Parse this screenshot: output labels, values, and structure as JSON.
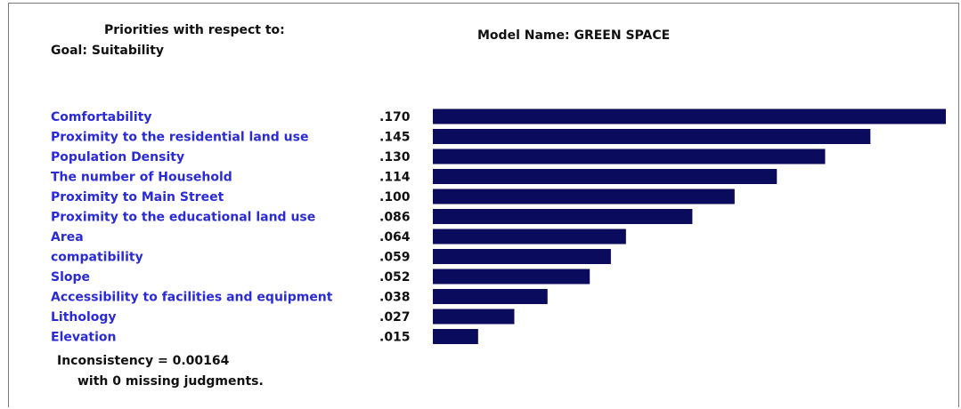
{
  "header": {
    "priorities_line": "Priorities with respect to:",
    "goal_line": "Goal: Suitability",
    "model_line": "Model Name: GREEN SPACE"
  },
  "chart_data": {
    "type": "bar",
    "orientation": "horizontal",
    "categories": [
      "Comfortability",
      "Proximity to the residential land use",
      "Population Density",
      "The number of Household",
      "Proximity to Main Street",
      "Proximity to the educational land use",
      "Area",
      "compatibility",
      "Slope",
      "Accessibility to facilities and equipment",
      "Lithology",
      "Elevation"
    ],
    "value_labels": [
      ".170",
      ".145",
      ".130",
      ".114",
      ".100",
      ".086",
      ".064",
      ".059",
      ".052",
      ".038",
      ".027",
      ".015"
    ],
    "values": [
      0.17,
      0.145,
      0.13,
      0.114,
      0.1,
      0.086,
      0.064,
      0.059,
      0.052,
      0.038,
      0.027,
      0.015
    ],
    "xlim": [
      0,
      0.17
    ],
    "title": "",
    "xlabel": "",
    "ylabel": "",
    "grid": false,
    "colors": {
      "bar": "#0b0b5e",
      "category_text": "#2a2ad6",
      "value_text": "#111111"
    }
  },
  "footer": {
    "inconsistency": "Inconsistency = 0.00164",
    "missing": "with 0  missing judgments."
  }
}
